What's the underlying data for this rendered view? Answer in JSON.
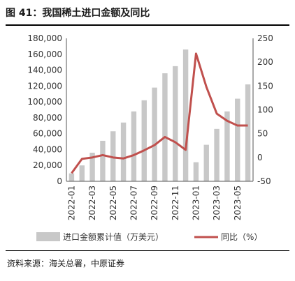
{
  "figure": {
    "title": "图 41：我国稀土进口金额及同比",
    "source": "资料来源：海关总署，中原证券"
  },
  "chart_data": {
    "type": "bar+line",
    "categories": [
      "2022-01",
      "2022-02",
      "2022-03",
      "2022-04",
      "2022-05",
      "2022-06",
      "2022-07",
      "2022-08",
      "2022-09",
      "2022-10",
      "2022-11",
      "2022-12",
      "2023-01",
      "2023-02",
      "2023-03",
      "2023-04",
      "2023-05",
      "2023-06"
    ],
    "x_tick_labels": [
      "2022-01",
      "2022-03",
      "2022-05",
      "2022-07",
      "2022-09",
      "2022-11",
      "2023-01",
      "2023-03",
      "2023-05"
    ],
    "series": [
      {
        "name": "进口金额累计值（万美元）",
        "kind": "bar",
        "axis": "left",
        "color": "#c8c8c8",
        "values": [
          10000,
          20000,
          36000,
          51000,
          63000,
          74000,
          88000,
          102000,
          118000,
          136000,
          145000,
          166000,
          24000,
          46000,
          66000,
          88000,
          104000,
          122000
        ]
      },
      {
        "name": "同比（%）",
        "kind": "line",
        "axis": "right",
        "color": "#c0504d",
        "values": [
          -33,
          -3,
          0,
          5,
          0,
          -2,
          5,
          15,
          26,
          43,
          32,
          16,
          218,
          148,
          92,
          77,
          67,
          67
        ]
      }
    ],
    "y_left": {
      "min": 0,
      "max": 180000,
      "step": 20000,
      "tick_labels": [
        "0",
        "20,000",
        "40,000",
        "60,000",
        "80,000",
        "100,000",
        "120,000",
        "140,000",
        "160,000",
        "180,000"
      ]
    },
    "y_right": {
      "min": -50,
      "max": 250,
      "step": 50,
      "tick_labels": [
        "-50",
        "0",
        "50",
        "100",
        "150",
        "200",
        "250"
      ]
    },
    "grid": false,
    "legend_position": "bottom"
  }
}
